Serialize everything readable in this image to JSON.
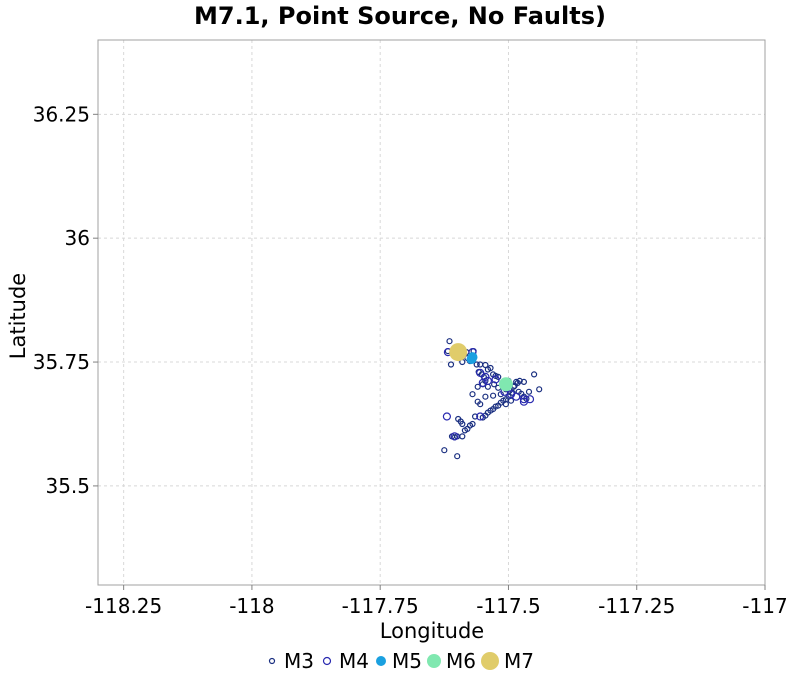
{
  "chart_data": {
    "type": "scatter",
    "title": "M7.1, Point Source, No Faults)",
    "xlabel": "Longitude",
    "ylabel": "Latitude",
    "xlim": [
      -118.3,
      -117.0
    ],
    "ylim": [
      35.3,
      36.4
    ],
    "xticks": [
      -118.25,
      -118,
      -117.75,
      -117.5,
      -117.25,
      -117
    ],
    "xtick_labels": [
      "-118.25",
      "-118",
      "-117.75",
      "-117.5",
      "-117.25",
      "-117"
    ],
    "yticks": [
      35.5,
      35.75,
      36,
      36.25
    ],
    "ytick_labels": [
      "35.5",
      "35.75",
      "36",
      "36.25"
    ],
    "grid": true,
    "legend_position": "bottom",
    "series": [
      {
        "name": "M3",
        "color": "#1a2f80",
        "filled": false,
        "points": [
          [
            -117.615,
            35.792
          ],
          [
            -117.618,
            35.772
          ],
          [
            -117.6,
            35.765
          ],
          [
            -117.582,
            35.77
          ],
          [
            -117.568,
            35.772
          ],
          [
            -117.575,
            35.752
          ],
          [
            -117.562,
            35.745
          ],
          [
            -117.555,
            35.745
          ],
          [
            -117.545,
            35.744
          ],
          [
            -117.535,
            35.738
          ],
          [
            -117.53,
            35.725
          ],
          [
            -117.525,
            35.722
          ],
          [
            -117.558,
            35.73
          ],
          [
            -117.552,
            35.725
          ],
          [
            -117.548,
            35.72
          ],
          [
            -117.545,
            35.712
          ],
          [
            -117.55,
            35.705
          ],
          [
            -117.54,
            35.7
          ],
          [
            -117.528,
            35.705
          ],
          [
            -117.52,
            35.698
          ],
          [
            -117.51,
            35.7
          ],
          [
            -117.505,
            35.695
          ],
          [
            -117.498,
            35.692
          ],
          [
            -117.492,
            35.688
          ],
          [
            -117.488,
            35.702
          ],
          [
            -117.482,
            35.708
          ],
          [
            -117.478,
            35.712
          ],
          [
            -117.48,
            35.69
          ],
          [
            -117.475,
            35.686
          ],
          [
            -117.47,
            35.68
          ],
          [
            -117.465,
            35.676
          ],
          [
            -117.5,
            35.68
          ],
          [
            -117.505,
            35.675
          ],
          [
            -117.51,
            35.672
          ],
          [
            -117.515,
            35.668
          ],
          [
            -117.52,
            35.662
          ],
          [
            -117.525,
            35.66
          ],
          [
            -117.53,
            35.655
          ],
          [
            -117.535,
            35.652
          ],
          [
            -117.54,
            35.648
          ],
          [
            -117.545,
            35.642
          ],
          [
            -117.55,
            35.638
          ],
          [
            -117.555,
            35.665
          ],
          [
            -117.56,
            35.67
          ],
          [
            -117.565,
            35.64
          ],
          [
            -117.57,
            35.625
          ],
          [
            -117.575,
            35.622
          ],
          [
            -117.58,
            35.615
          ],
          [
            -117.585,
            35.612
          ],
          [
            -117.59,
            35.625
          ],
          [
            -117.593,
            35.63
          ],
          [
            -117.598,
            35.635
          ],
          [
            -117.6,
            35.6
          ],
          [
            -117.605,
            35.598
          ],
          [
            -117.61,
            35.6
          ],
          [
            -117.625,
            35.572
          ],
          [
            -117.6,
            35.56
          ],
          [
            -117.59,
            35.6
          ],
          [
            -117.51,
            35.71
          ],
          [
            -117.5,
            35.712
          ],
          [
            -117.49,
            35.7
          ],
          [
            -117.485,
            35.71
          ],
          [
            -117.47,
            35.71
          ],
          [
            -117.45,
            35.725
          ],
          [
            -117.44,
            35.695
          ],
          [
            -117.46,
            35.69
          ],
          [
            -117.56,
            35.7
          ],
          [
            -117.57,
            35.685
          ],
          [
            -117.545,
            35.68
          ],
          [
            -117.53,
            35.682
          ],
          [
            -117.52,
            35.72
          ],
          [
            -117.54,
            35.735
          ],
          [
            -117.59,
            35.75
          ],
          [
            -117.58,
            35.758
          ],
          [
            -117.612,
            35.745
          ],
          [
            -117.505,
            35.665
          ],
          [
            -117.495,
            35.672
          ],
          [
            -117.515,
            35.685
          ]
        ]
      },
      {
        "name": "M4",
        "color": "#2a2ab0",
        "filled": false,
        "points": [
          [
            -117.618,
            35.77
          ],
          [
            -117.598,
            35.77
          ],
          [
            -117.57,
            35.77
          ],
          [
            -117.555,
            35.728
          ],
          [
            -117.545,
            35.72
          ],
          [
            -117.55,
            35.708
          ],
          [
            -117.54,
            35.712
          ],
          [
            -117.525,
            35.715
          ],
          [
            -117.508,
            35.69
          ],
          [
            -117.495,
            35.685
          ],
          [
            -117.485,
            35.68
          ],
          [
            -117.47,
            35.675
          ],
          [
            -117.458,
            35.675
          ],
          [
            -117.47,
            35.67
          ],
          [
            -117.555,
            35.64
          ],
          [
            -117.605,
            35.6
          ],
          [
            -117.62,
            35.64
          ]
        ]
      },
      {
        "name": "M5",
        "color": "#1aa0e0",
        "filled": true,
        "points": [
          [
            -117.57,
            35.76
          ],
          [
            -117.572,
            35.756
          ]
        ]
      },
      {
        "name": "M6",
        "color": "#80e8b0",
        "filled": true,
        "points": [
          [
            -117.505,
            35.705
          ]
        ]
      },
      {
        "name": "M7",
        "color": "#e0cc6a",
        "filled": true,
        "points": [
          [
            -117.598,
            35.77
          ]
        ]
      }
    ]
  }
}
